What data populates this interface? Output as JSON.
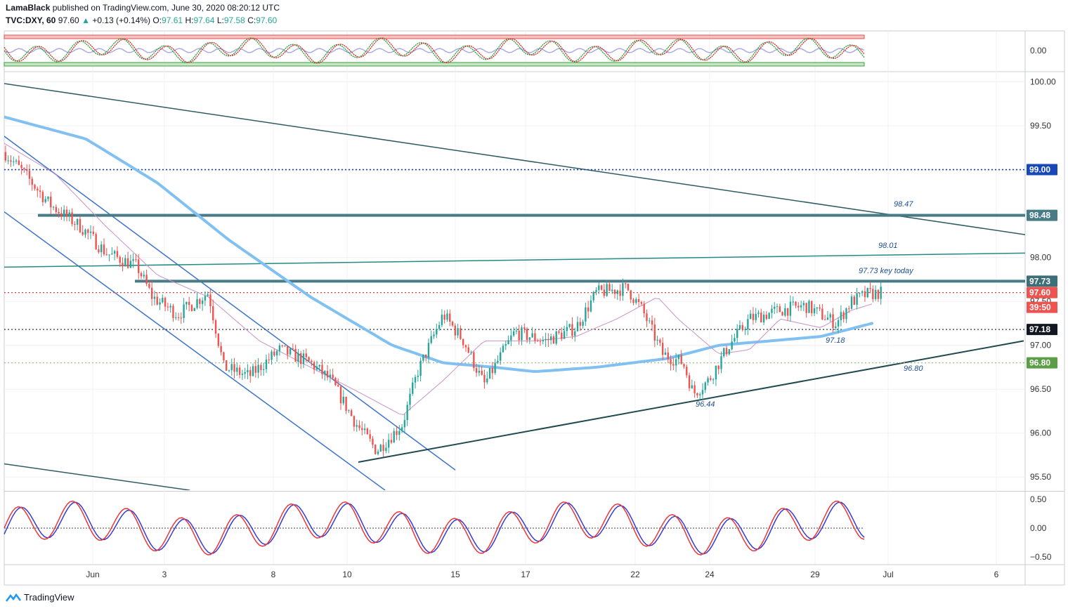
{
  "header": {
    "publisher": "LamaBlack",
    "published_text": "published on TradingView.com, June 30, 2020 08:20:12 UTC",
    "symbol": "TVC:DXY, 60",
    "last": "97.60",
    "arrow": "▲",
    "change": "+0.13 (+0.14%)",
    "o_label": "O:",
    "o": "97.61",
    "h_label": "H:",
    "h": "97.64",
    "l_label": "L:",
    "l": "97.58",
    "c_label": "C:",
    "c": "97.60"
  },
  "footer": {
    "brand": "TradingView"
  },
  "colors": {
    "up": "#26a69a",
    "down": "#ef5350",
    "blue_line": "#3d74c9",
    "ma200": "#80c1f2",
    "ma_small": "#c792c7",
    "teal_level": "#477c87",
    "dark_trend": "#2f5b64",
    "navy_dotted": "#1e3f9e",
    "red_dotted": "#d84040",
    "green_dotted": "#8fbc73"
  },
  "chart_data": [
    {
      "type": "candlestick",
      "title": "TVC:DXY, 60",
      "x_ticks": [
        "Jun",
        "3",
        "8",
        "10",
        "15",
        "17",
        "22",
        "24",
        "29",
        "Jul",
        "6"
      ],
      "y_ticks": [
        "100.00",
        "99.50",
        "99.00",
        "98.50",
        "98.00",
        "97.50",
        "97.00",
        "96.50",
        "96.00",
        "95.50"
      ],
      "ylim": [
        95.35,
        100.1
      ],
      "levels": [
        {
          "value": 99.0,
          "label": "99.00",
          "style": "dotted",
          "color": "#1e3f9e"
        },
        {
          "value": 98.48,
          "label": "98.48",
          "style": "solid-thick",
          "color": "#477c87"
        },
        {
          "value": 97.73,
          "label": "97.73",
          "style": "solid-thick",
          "color": "#477c87"
        },
        {
          "value": 97.6,
          "label": "97.60",
          "style": "dotted",
          "color": "#d84040"
        },
        {
          "value": 97.18,
          "label": "97.18",
          "style": "dotted",
          "color": "#333333"
        },
        {
          "value": 96.8,
          "label": "96.80",
          "style": "dotted",
          "color": "#8fbc73"
        }
      ],
      "countdown_label": "39:50",
      "annotations": [
        "98.47",
        "98.01",
        "97.73 key today",
        "97.18",
        "96.80",
        "96.44"
      ],
      "price_path": [
        [
          0,
          99.2
        ],
        [
          0.02,
          98.95
        ],
        [
          0.045,
          98.6
        ],
        [
          0.075,
          98.35
        ],
        [
          0.1,
          98.05
        ],
        [
          0.13,
          97.9
        ],
        [
          0.145,
          97.55
        ],
        [
          0.17,
          97.35
        ],
        [
          0.2,
          97.6
        ],
        [
          0.215,
          96.75
        ],
        [
          0.24,
          96.65
        ],
        [
          0.27,
          96.95
        ],
        [
          0.3,
          96.8
        ],
        [
          0.32,
          96.6
        ],
        [
          0.345,
          96.1
        ],
        [
          0.365,
          95.8
        ],
        [
          0.39,
          96.1
        ],
        [
          0.405,
          96.7
        ],
        [
          0.43,
          97.35
        ],
        [
          0.45,
          97.05
        ],
        [
          0.47,
          96.55
        ],
        [
          0.5,
          97.15
        ],
        [
          0.53,
          97.05
        ],
        [
          0.56,
          97.2
        ],
        [
          0.58,
          97.6
        ],
        [
          0.61,
          97.65
        ],
        [
          0.625,
          97.4
        ],
        [
          0.645,
          96.9
        ],
        [
          0.665,
          96.8
        ],
        [
          0.675,
          96.45
        ],
        [
          0.69,
          96.6
        ],
        [
          0.71,
          97.0
        ],
        [
          0.73,
          97.3
        ],
        [
          0.76,
          97.4
        ],
        [
          0.785,
          97.45
        ],
        [
          0.8,
          97.35
        ],
        [
          0.815,
          97.25
        ],
        [
          0.83,
          97.5
        ],
        [
          0.845,
          97.58
        ],
        [
          0.86,
          97.6
        ]
      ],
      "ma200_path": [
        [
          0,
          99.6
        ],
        [
          0.08,
          99.35
        ],
        [
          0.15,
          98.85
        ],
        [
          0.22,
          98.2
        ],
        [
          0.3,
          97.55
        ],
        [
          0.38,
          97.0
        ],
        [
          0.43,
          96.8
        ],
        [
          0.48,
          96.75
        ],
        [
          0.52,
          96.7
        ],
        [
          0.58,
          96.75
        ],
        [
          0.65,
          96.85
        ],
        [
          0.7,
          97.0
        ],
        [
          0.75,
          97.05
        ],
        [
          0.8,
          97.1
        ],
        [
          0.85,
          97.25
        ]
      ],
      "ma_small_path": [
        [
          0,
          99.3
        ],
        [
          0.05,
          98.95
        ],
        [
          0.1,
          98.35
        ],
        [
          0.15,
          97.8
        ],
        [
          0.2,
          97.55
        ],
        [
          0.25,
          97.05
        ],
        [
          0.3,
          96.75
        ],
        [
          0.35,
          96.45
        ],
        [
          0.39,
          96.2
        ],
        [
          0.43,
          96.6
        ],
        [
          0.47,
          97.05
        ],
        [
          0.52,
          97.05
        ],
        [
          0.56,
          97.1
        ],
        [
          0.6,
          97.3
        ],
        [
          0.64,
          97.55
        ],
        [
          0.66,
          97.3
        ],
        [
          0.7,
          96.9
        ],
        [
          0.73,
          96.95
        ],
        [
          0.76,
          97.3
        ],
        [
          0.8,
          97.2
        ],
        [
          0.83,
          97.4
        ],
        [
          0.85,
          97.47
        ]
      ]
    },
    {
      "type": "line",
      "title": "oscillator (top)",
      "y_ticks": [
        "0.00"
      ],
      "series_count": 2
    },
    {
      "type": "line",
      "title": "oscillator (bottom)",
      "y_ticks": [
        "0.50",
        "0.00",
        "−0.50"
      ],
      "ylim": [
        -0.62,
        0.62
      ],
      "series_count": 2
    }
  ]
}
